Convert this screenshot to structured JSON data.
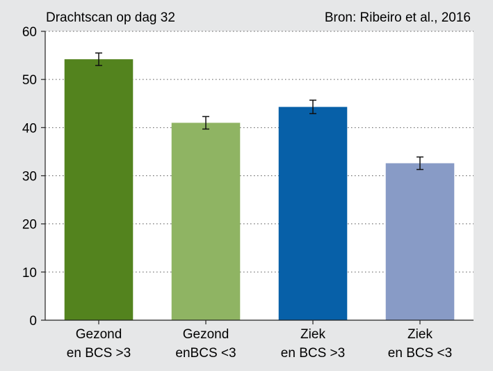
{
  "chart_data": {
    "type": "bar",
    "title": "Drachtscan op dag 32",
    "source": "Bron: Ribeiro et al., 2016",
    "xlabel": "",
    "ylabel": "",
    "ylim": [
      0,
      60
    ],
    "yticks": [
      0,
      10,
      20,
      30,
      40,
      50,
      60
    ],
    "grid": true,
    "categories": [
      [
        "Gezond",
        "en BCS >3"
      ],
      [
        "Gezond",
        "enBCS <3"
      ],
      [
        "Ziek",
        "en BCS >3"
      ],
      [
        "Ziek",
        "en BCS <3"
      ]
    ],
    "values": [
      54.2,
      41.0,
      44.3,
      32.6
    ],
    "errors": [
      1.3,
      1.3,
      1.4,
      1.3
    ],
    "colors": [
      "#53831e",
      "#8fb463",
      "#0760a8",
      "#889bc6"
    ]
  }
}
